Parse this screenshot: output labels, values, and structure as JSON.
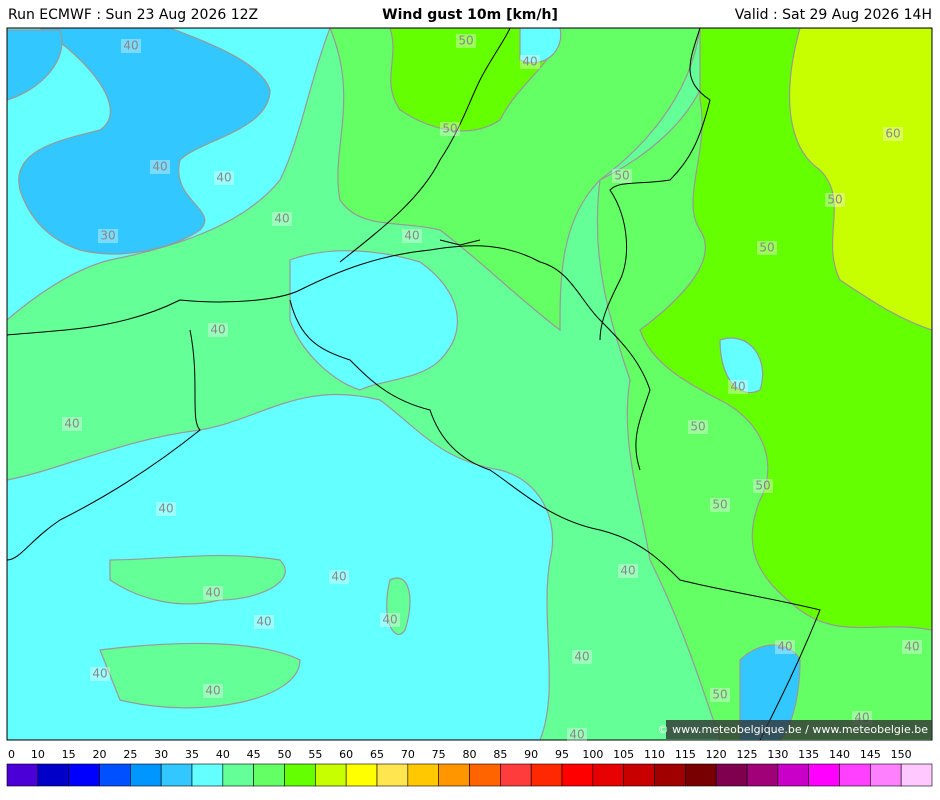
{
  "header": {
    "run": "Run ECMWF : Sun 23 Aug 2026 12Z",
    "title": "Wind gust 10m [km/h]",
    "valid": "Valid : Sat 29 Aug 2026 14H"
  },
  "map": {
    "contour_labels": [
      40,
      50,
      40,
      50,
      60,
      40,
      40,
      50,
      50,
      40,
      30,
      40,
      50,
      40,
      40,
      40,
      50,
      50,
      50,
      40,
      40,
      40,
      40,
      40,
      40,
      40,
      40,
      40,
      40,
      40,
      50,
      40,
      40
    ],
    "credit": "© www.meteobelgique.be / www.meteobelgie.be"
  },
  "legend": {
    "labels": [
      0,
      10,
      15,
      20,
      25,
      30,
      35,
      40,
      45,
      50,
      55,
      60,
      65,
      70,
      75,
      80,
      85,
      90,
      95,
      100,
      105,
      110,
      115,
      120,
      125,
      130,
      135,
      140,
      145,
      150
    ],
    "colors": [
      "#4b00d8",
      "#0000c8",
      "#0000ff",
      "#0050ff",
      "#0096ff",
      "#32c8ff",
      "#64ffff",
      "#64ff96",
      "#64ff64",
      "#64ff00",
      "#c8ff00",
      "#ffff00",
      "#ffe650",
      "#ffc800",
      "#ff9600",
      "#ff6400",
      "#ff3c3c",
      "#ff2800",
      "#ff0000",
      "#e60000",
      "#c80000",
      "#a00000",
      "#780000",
      "#800050",
      "#a00078",
      "#c800c8",
      "#ff00ff",
      "#ff40ff",
      "#ff80ff",
      "#ffc8ff"
    ]
  }
}
